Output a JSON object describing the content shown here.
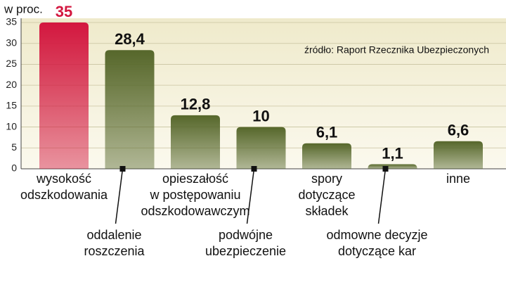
{
  "chart_data": {
    "type": "bar",
    "unit_label": "w proc.",
    "source": "źródło: Raport Rzecznika Ubezpieczonych",
    "categories": [
      [
        "wysokość",
        "odszkodowania"
      ],
      [
        "oddalenie",
        "roszczenia"
      ],
      [
        "opieszałość",
        "w postępowaniu",
        "odszkodowawczym"
      ],
      [
        "podwójne",
        "ubezpieczenie"
      ],
      [
        "spory",
        "dotyczące",
        "składek"
      ],
      [
        "odmowne decyzje",
        "dotyczące kar"
      ],
      [
        "inne"
      ]
    ],
    "values": [
      35,
      28.4,
      12.8,
      10,
      6.1,
      1.1,
      6.6
    ],
    "value_labels": [
      "35",
      "28,4",
      "12,8",
      "10",
      "6,1",
      "1,1",
      "6,6"
    ],
    "colors": [
      "#d3173f",
      "#56672b",
      "#56672b",
      "#56672b",
      "#56672b",
      "#56672b",
      "#56672b"
    ],
    "value_label_colors": [
      "#d3173f",
      "#111111",
      "#111111",
      "#111111",
      "#111111",
      "#111111",
      "#111111"
    ],
    "ylim": [
      0,
      35
    ],
    "yticks": [
      0,
      5,
      10,
      15,
      20,
      25,
      30,
      35
    ],
    "grid": true
  }
}
